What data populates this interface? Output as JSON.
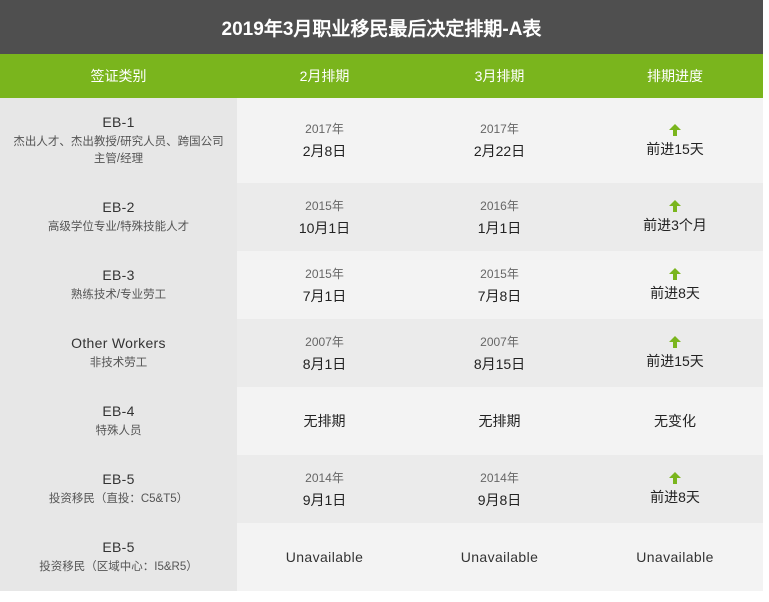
{
  "title": "2019年3月职业移民最后决定排期-A表",
  "header": {
    "col1": "签证类别",
    "col2": "2月排期",
    "col3": "3月排期",
    "col4": "排期进度"
  },
  "colors": {
    "title_bg": "#4f4f4f",
    "header_bg": "#7ab51d",
    "arrow": "#7ab51d"
  },
  "rows": [
    {
      "category": "EB-1",
      "desc": "杰出人才、杰出教授/研究人员、跨国公司主管/经理",
      "feb_year": "2017年",
      "feb_date": "2月8日",
      "mar_year": "2017年",
      "mar_date": "2月22日",
      "arrow_icon": "arrow-up-icon",
      "progress": "前进15天"
    },
    {
      "category": "EB-2",
      "desc": "高级学位专业/特殊技能人才",
      "feb_year": "2015年",
      "feb_date": "10月1日",
      "mar_year": "2016年",
      "mar_date": "1月1日",
      "arrow_icon": "arrow-up-icon",
      "progress": "前进3个月"
    },
    {
      "category": "EB-3",
      "desc": "熟练技术/专业劳工",
      "feb_year": "2015年",
      "feb_date": "7月1日",
      "mar_year": "2015年",
      "mar_date": "7月8日",
      "arrow_icon": "arrow-up-icon",
      "progress": "前进8天"
    },
    {
      "category": "Other Workers",
      "desc": "非技术劳工",
      "feb_year": "2007年",
      "feb_date": "8月1日",
      "mar_year": "2007年",
      "mar_date": "8月15日",
      "arrow_icon": "arrow-up-icon",
      "progress": "前进15天"
    },
    {
      "category": "EB-4",
      "desc": "特殊人员",
      "feb": "无排期",
      "mar": "无排期",
      "progress": "无变化"
    },
    {
      "category": "EB-5",
      "desc": "投资移民（直投：C5&T5）",
      "feb_year": "2014年",
      "feb_date": "9月1日",
      "mar_year": "2014年",
      "mar_date": "9月8日",
      "arrow_icon": "arrow-up-icon",
      "progress": "前进8天"
    },
    {
      "category": "EB-5",
      "desc": "投资移民（区域中心：I5&R5）",
      "feb": "Unavailable",
      "mar": "Unavailable",
      "progress": "Unavailable"
    }
  ]
}
